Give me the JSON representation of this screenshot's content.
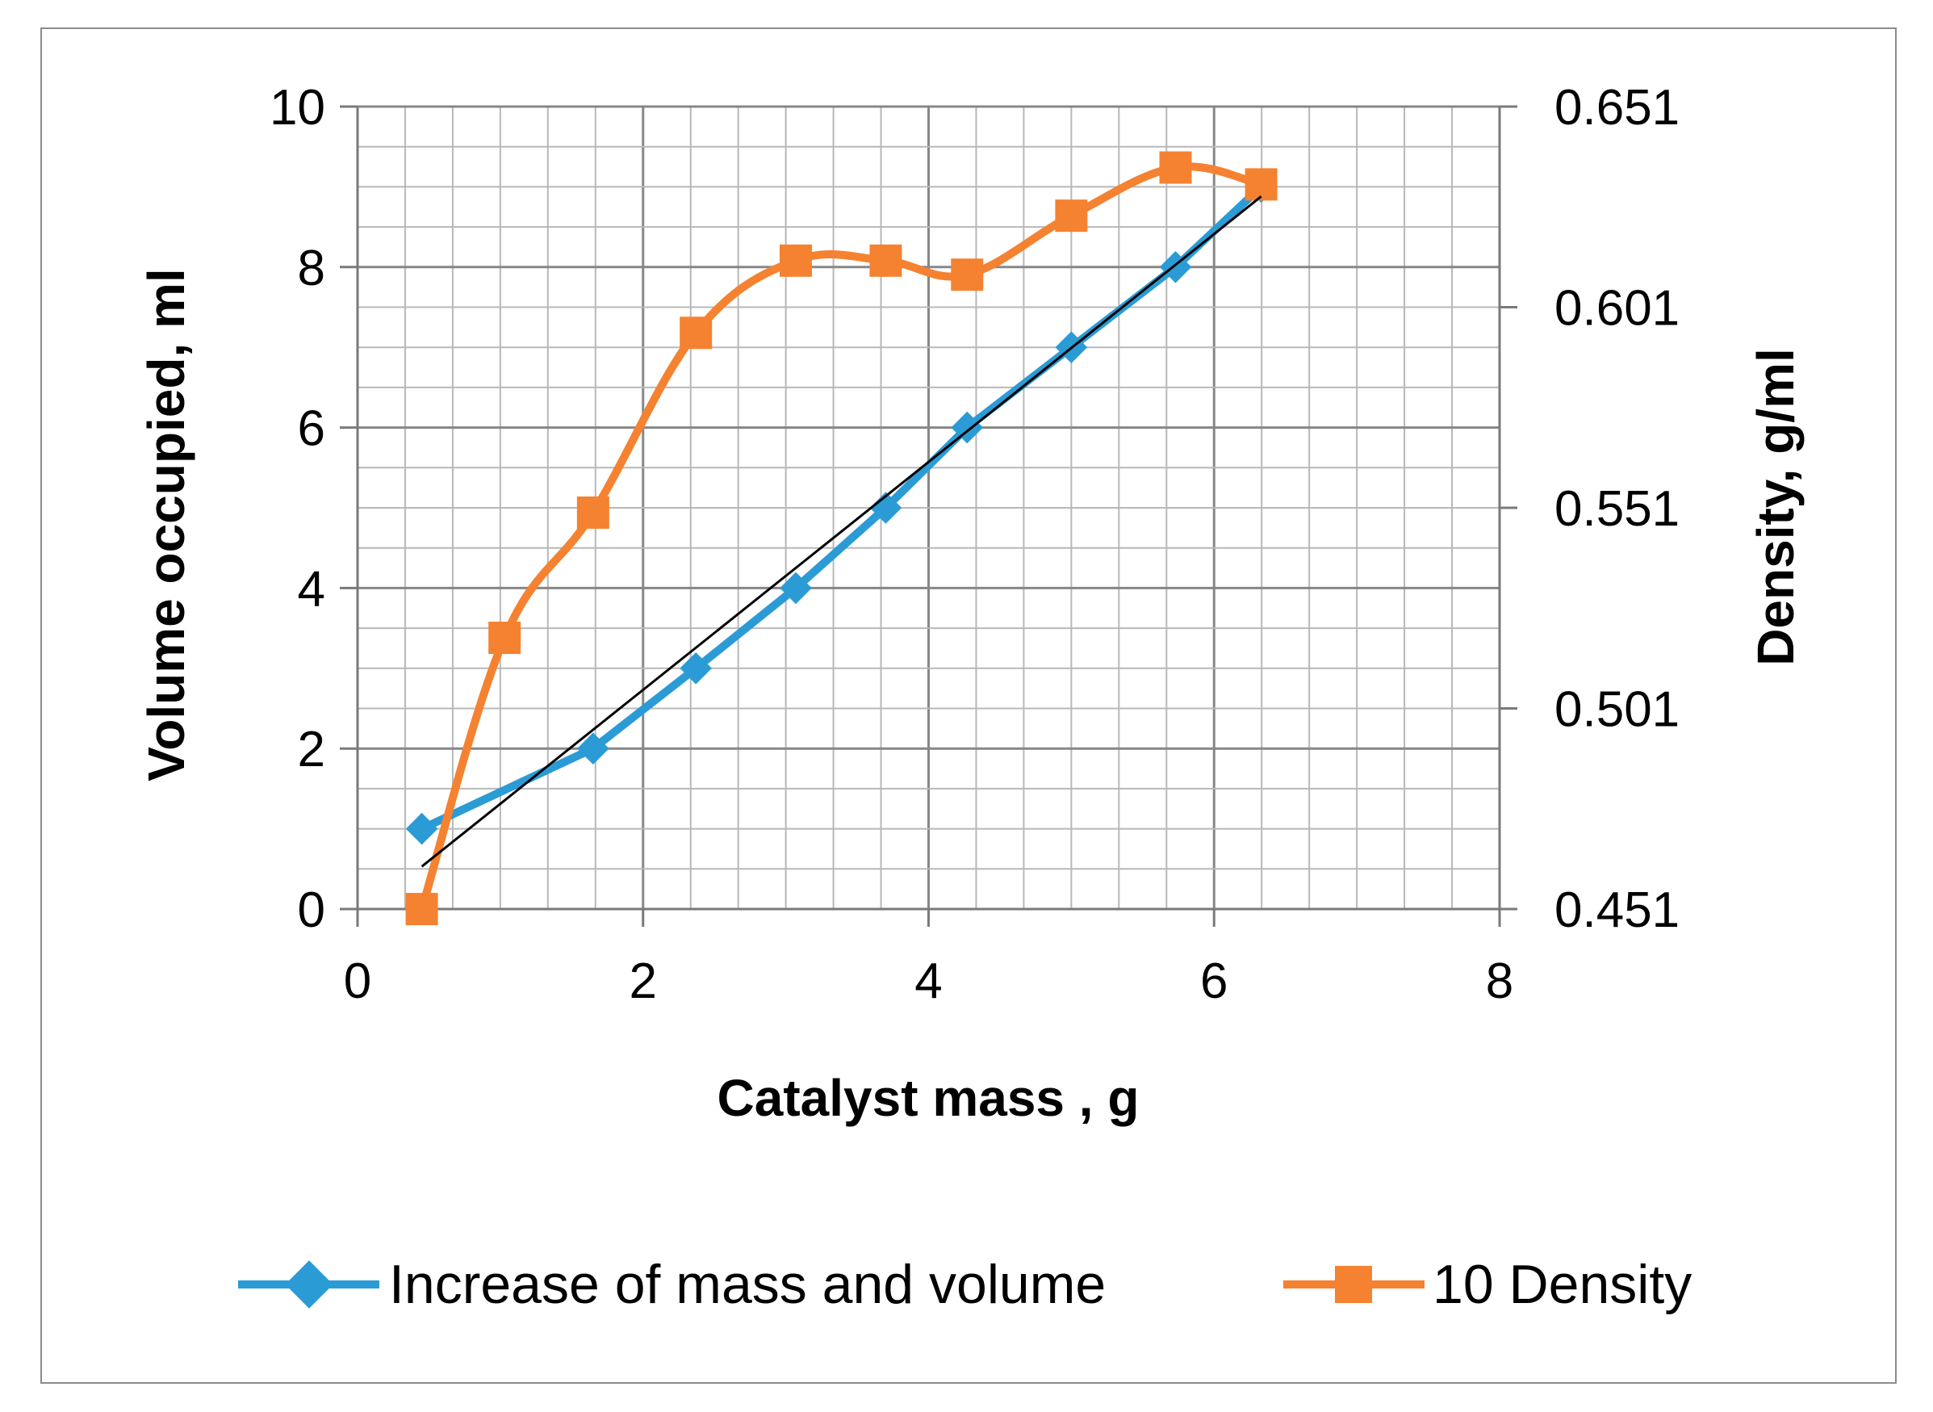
{
  "chart_data": {
    "type": "line",
    "title": "",
    "xlabel": "Catalyst mass , g",
    "ylabel": "Volume occupied, ml",
    "y2label": "Density, g/ml",
    "xlim": [
      0,
      8
    ],
    "ylim": [
      0,
      10
    ],
    "y2lim": [
      0.451,
      0.651
    ],
    "x_ticks": [
      "0",
      "2",
      "4",
      "6",
      "8"
    ],
    "y_ticks": [
      "0",
      "2",
      "4",
      "6",
      "8",
      "10"
    ],
    "y2_ticks": [
      "0.451",
      "0.501",
      "0.551",
      "0.601",
      "0.651"
    ],
    "grid": true,
    "legend_position": "bottom",
    "series": [
      {
        "name": "Increase of mass and volume",
        "axis": "left",
        "color": "#2b9bd6",
        "marker": "diamond",
        "smooth": false,
        "x": [
          0.45,
          1.65,
          2.37,
          3.07,
          3.7,
          4.27,
          5.0,
          5.73,
          6.33
        ],
        "y": [
          1,
          2,
          3,
          4,
          5,
          6,
          7,
          8,
          9
        ]
      },
      {
        "name": "10 Density",
        "axis": "right",
        "color": "#f58231",
        "marker": "square",
        "smooth": true,
        "x": [
          0.45,
          1.03,
          1.65,
          2.37,
          3.07,
          3.7,
          4.27,
          5.0,
          5.73,
          6.33
        ],
        "y": [
          0.451,
          0.5186,
          0.5498,
          0.5946,
          0.6126,
          0.6126,
          0.6091,
          0.6238,
          0.6358,
          0.6316
        ]
      }
    ],
    "trendline": {
      "color": "#000000",
      "x": [
        0.45,
        6.33
      ],
      "y": [
        0.53,
        8.88
      ]
    }
  }
}
